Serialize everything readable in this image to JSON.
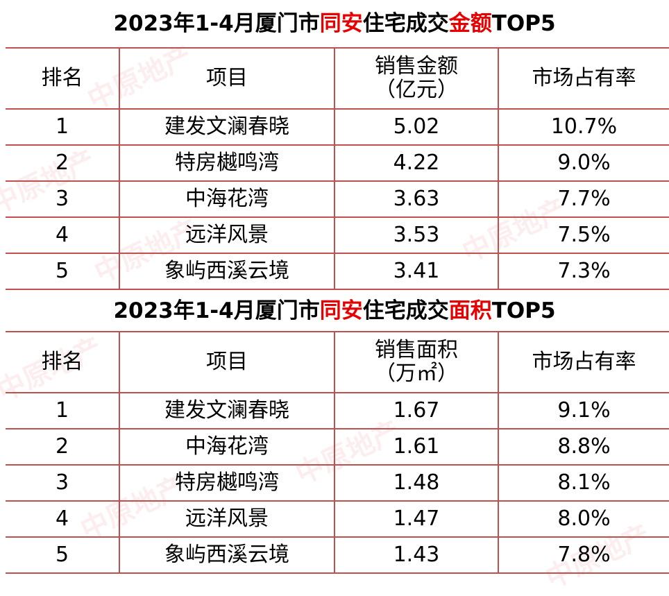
{
  "table1": {
    "title_parts": [
      "2023年1-4月厦门市",
      "同安",
      "住宅成交",
      "金额",
      "TOP5"
    ],
    "headers": [
      "排名",
      "项目",
      "销售金额",
      "（亿元）",
      "市场占有率"
    ],
    "rows": [
      [
        "1",
        "建发文澜春晓",
        "5.02",
        "10.7%"
      ],
      [
        "2",
        "特房樾鸣湾",
        "4.22",
        "9.0%"
      ],
      [
        "3",
        "中海花湾",
        "3.63",
        "7.7%"
      ],
      [
        "4",
        "远洋风景",
        "3.53",
        "7.5%"
      ],
      [
        "5",
        "象屿西溪云境",
        "3.41",
        "7.3%"
      ]
    ]
  },
  "table2": {
    "title_parts": [
      "2023年1-4月厦门市",
      "同安",
      "住宅成交",
      "面积",
      "TOP5"
    ],
    "headers": [
      "排名",
      "项目",
      "销售面积",
      "（万㎡）",
      "市场占有率"
    ],
    "rows": [
      [
        "1",
        "建发文澜春晓",
        "1.67",
        "9.1%"
      ],
      [
        "2",
        "中海花湾",
        "1.61",
        "8.8%"
      ],
      [
        "3",
        "特房樾鸣湾",
        "1.48",
        "8.1%"
      ],
      [
        "4",
        "远洋风景",
        "1.47",
        "8.0%"
      ],
      [
        "5",
        "象屿西溪云境",
        "1.43",
        "7.8%"
      ]
    ]
  },
  "watermark": "中原地产"
}
